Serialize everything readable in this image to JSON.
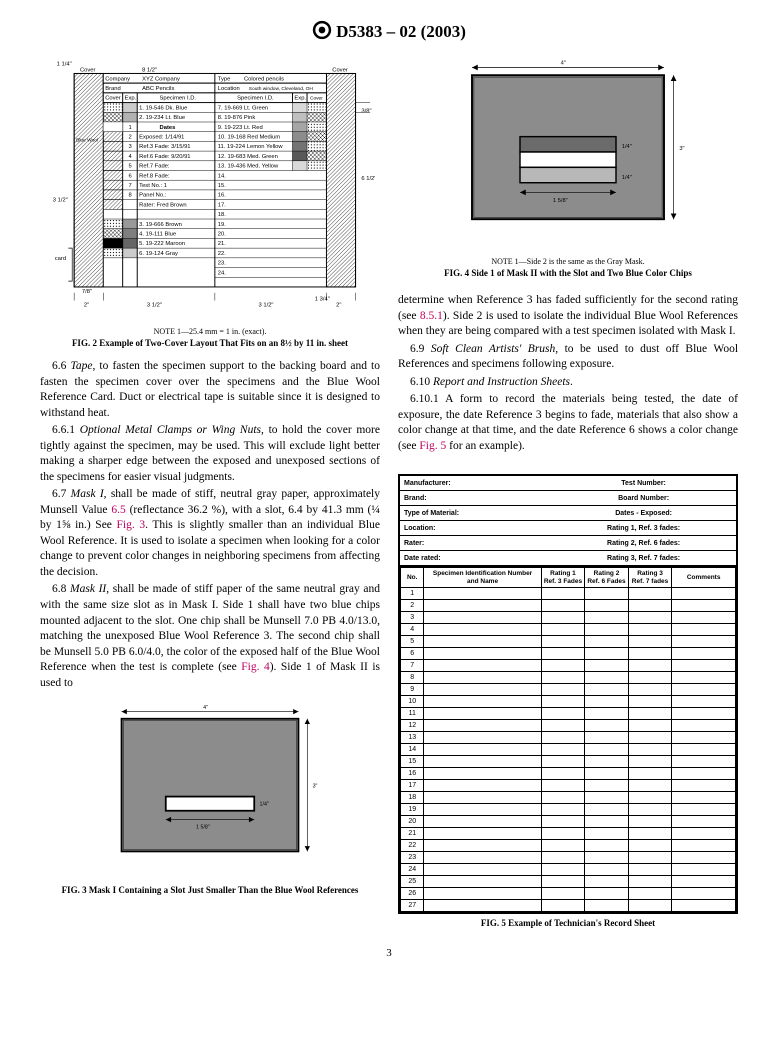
{
  "header": {
    "designation": "D5383 – 02  (2003)"
  },
  "fig2": {
    "note": "NOTE 1—25.4 mm = 1 in. (exact).",
    "caption": "FIG. 2 Example of Two-Cover Layout That Fits on an 8½ by 11 in. sheet",
    "dims": {
      "outer_w": "2\"",
      "cover_w": "3 1/2\"",
      "row_h": "3/8\"",
      "card_h": "7/8\"",
      "total_h": "6 1/2\"",
      "left_total": "3 1/2\"",
      "top_margin": "1 1/4\"",
      "right_arrow": "1 3/4\""
    },
    "labels": {
      "company": "Company",
      "company_val": "XYZ Company",
      "type": "Type",
      "type_val": "Colored pencils",
      "brand": "Brand",
      "brand_val": "ABC Pencils",
      "location": "Location",
      "location_val": "South window, Cleveland, OH",
      "cover": "Cover",
      "exp": "Exp.",
      "specimen": "Specimen I.D.",
      "blue_wool": "Blue Wool",
      "dates": "Dates",
      "card": "card"
    },
    "left_rows": [
      "1. 19-546 Dk. Blue",
      "2. 19-234 Lt. Blue",
      "",
      "Exposed: 1/14/91",
      "Ref.3 Fade: 3/15/91",
      "Ref.6 Fade: 9/20/91",
      "Ref.7 Fade:",
      "Ref.8 Fade:",
      "Test No.: 1",
      "Panel No.:",
      "Rater: Fred Brown",
      "",
      "3. 19-666 Brown",
      "4. 19-111 Blue",
      "5. 19-222 Maroon",
      "6. 19-124 Gray"
    ],
    "right_rows": [
      "7. 19-669 Lt. Green",
      "8. 19-876 Pink",
      "9. 19-223 Lt. Red",
      "10. 19-168 Red Medium",
      "11. 19-224 Lemon Yellow",
      "12. 19-683 Med. Green",
      "13. 19-436 Med. Yellow",
      "14.",
      "15.",
      "16.",
      "17.",
      "18.",
      "19.",
      "20.",
      "21.",
      "22.",
      "23.",
      "24."
    ],
    "row_nos_left": [
      "1",
      "2",
      "3",
      "4",
      "5",
      "6",
      "7",
      "8"
    ]
  },
  "fig3": {
    "caption": "FIG. 3 Mask I Containing a Slot Just Smaller Than the Blue Wool References",
    "width": "4\"",
    "height": "3\"",
    "slot_w": "1 5/8\"",
    "slot_h": "1/4\"",
    "bg": "#8c8c8c",
    "slot_fill": "#ffffff",
    "border": "#000000"
  },
  "fig4": {
    "note": "NOTE 1—Side 2 is the same as the Gray Mask.",
    "caption": "FIG. 4 Side 1 of Mask II with the Slot and Two Blue Color Chips",
    "width": "4\"",
    "height": "3\"",
    "slot_w": "1 5/8\"",
    "chip_h": "1/4\"",
    "bg": "#8c8c8c",
    "chip_top": "#6b6b6b",
    "chip_bot": "#b8b8b8",
    "slot_fill": "#ffffff"
  },
  "fig5": {
    "caption": "FIG. 5 Example of Technician's Record Sheet",
    "header_left": [
      "Manufacturer:",
      "Brand:",
      "Type of Material:",
      "Location:",
      "Rater:",
      "Date rated:"
    ],
    "header_right": [
      "Test Number:",
      "Board Number:",
      "Dates - Exposed:",
      "Rating 1,  Ref. 3 fades:",
      "Rating 2,  Ref. 6 fades:",
      "Rating 3,  Ref. 7 fades:"
    ],
    "cols": [
      "No.",
      "Specimen Identification Number and Name",
      "Rating 1 Ref. 3 Fades",
      "Rating 2 Ref. 6 Fades",
      "Rating 3 Ref. 7 fades",
      "Comments"
    ],
    "rows": 27
  },
  "text": {
    "p66": "6.6 ",
    "p66_term": "Tape",
    "p66_body": ", to fasten the specimen support to the backing board and to fasten the specimen cover over the specimens and the Blue Wool Reference Card. Duct or electrical tape is suitable since it is designed to withstand heat.",
    "p661": "6.6.1 ",
    "p661_term": "Optional Metal Clamps or Wing Nuts",
    "p661_body": ", to hold the cover more tightly against the specimen, may be used. This will exclude light better making a sharper edge between the exposed and unexposed sections of the specimens for easier visual judgments.",
    "p67": "6.7 ",
    "p67_term": "Mask I",
    "p67_body_a": ", shall be made of stiff, neutral gray paper, approximately Munsell Value ",
    "p67_xref1": "6.5",
    "p67_body_b": " (reflectance 36.2 %), with a slot, 6.4 by 41.3 mm (¼ by 1⅝ in.) See ",
    "p67_xref2": "Fig. 3",
    "p67_body_c": ". This is slightly smaller than an individual Blue Wool Reference. It is used to isolate a specimen when looking for a color change to prevent color changes in neighboring specimens from affecting the decision.",
    "p68": "6.8 ",
    "p68_term": "Mask II",
    "p68_body_a": ", shall be made of stiff paper of the same neutral gray and with the same size slot as in Mask I. Side 1 shall have two blue chips mounted adjacent to the slot. One chip shall be Munsell 7.0 PB 4.0/13.0, matching the unexposed Blue Wool Reference 3. The second chip shall be Munsell 5.0 PB 6.0/4.0, the color of the exposed half of the Blue Wool Reference when the test is complete (see ",
    "p68_xref1": "Fig. 4",
    "p68_body_b": "). Side 1 of Mask II is used to ",
    "p68_cont_a": "determine when Reference 3 has faded sufficiently for the second rating (see ",
    "p68_xref2": "8.5.1",
    "p68_cont_b": "). Side 2 is used to isolate the individual Blue Wool References when they are being compared with a test specimen isolated with Mask I.",
    "p69": "6.9 ",
    "p69_term": "Soft Clean Artists' Brush",
    "p69_body": ", to be used to dust off Blue Wool References and specimens following exposure.",
    "p610": "6.10 ",
    "p610_term": "Report and Instruction Sheets",
    "p610_body": ".",
    "p6101": "6.10.1 A form to record the materials being tested, the date of exposure, the date Reference 3 begins to fade, materials that also show a color change at that time, and the date Reference 6 shows a color change (see ",
    "p6101_xref": "Fig. 5",
    "p6101_end": " for an example)."
  },
  "page_number": "3"
}
